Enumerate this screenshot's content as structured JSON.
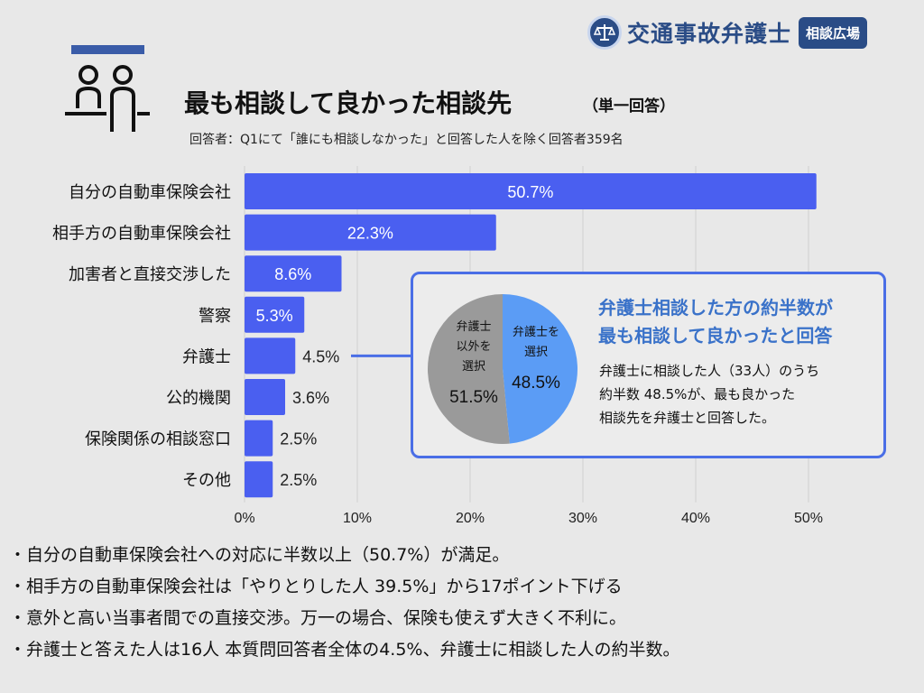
{
  "logo": {
    "emblem_icon": "scales-of-justice-icon",
    "name": "交通事故弁護士",
    "badge": "相談広場",
    "color": "#2a4c86"
  },
  "header": {
    "icon": "people-consultation-icon",
    "title": "最も相談して良かった相談先",
    "title_suffix": "（単一回答）",
    "note": "回答者：Q1にて「誰にも相談しなかった」と回答した人を除く回答者359名"
  },
  "chart_data": [
    {
      "type": "bar",
      "orientation": "horizontal",
      "categories": [
        "自分の自動車保険会社",
        "相手方の自動車保険会社",
        "加害者と直接交渉した",
        "警察",
        "弁護士",
        "公的機関",
        "保険関係の相談窓口",
        "その他"
      ],
      "values": [
        50.7,
        22.3,
        8.6,
        5.3,
        4.5,
        3.6,
        2.5,
        2.5
      ],
      "value_labels": [
        "50.7%",
        "22.3%",
        "8.6%",
        "5.3%",
        "4.5%",
        "3.6%",
        "2.5%",
        "2.5%"
      ],
      "xticks": [
        "0%",
        "10%",
        "20%",
        "30%",
        "40%",
        "50%"
      ],
      "xlim": [
        0,
        50
      ],
      "grid": true,
      "bar_color": "#4a5ff0"
    },
    {
      "type": "pie",
      "slices": [
        {
          "label": "弁護士を選択",
          "value": 48.5,
          "value_label": "48.5%",
          "color": "#5b9cf5"
        },
        {
          "label": "弁護士以外を選択",
          "value": 51.5,
          "value_label": "51.5%",
          "color": "#9a9a9a"
        }
      ]
    }
  ],
  "callout": {
    "headline_1": "弁護士相談した方の約半数が",
    "headline_2": "最も相談して良かったと回答",
    "body_1": "弁護士に相談した人（33人）のうち",
    "body_2": "約半数 48.5%が、最も良かった",
    "body_3": "相談先を弁護士と回答した。",
    "pie_label_lawyer_1": "弁護士を",
    "pie_label_lawyer_2": "選択",
    "pie_label_other_1": "弁護士",
    "pie_label_other_2": "以外を",
    "pie_label_other_3": "選択"
  },
  "bullets": [
    "・自分の自動車保険会社への対応に半数以上（50.7%）が満足。",
    "・相手方の自動車保険会社は「やりとりした人 39.5%」から17ポイント下げる",
    "・意外と高い当事者間での直接交渉。万一の場合、保険も使えず大きく不利に。",
    "・弁護士と答えた人は16人 本質問回答者全体の4.5%、弁護士に相談した人の約半数。"
  ]
}
